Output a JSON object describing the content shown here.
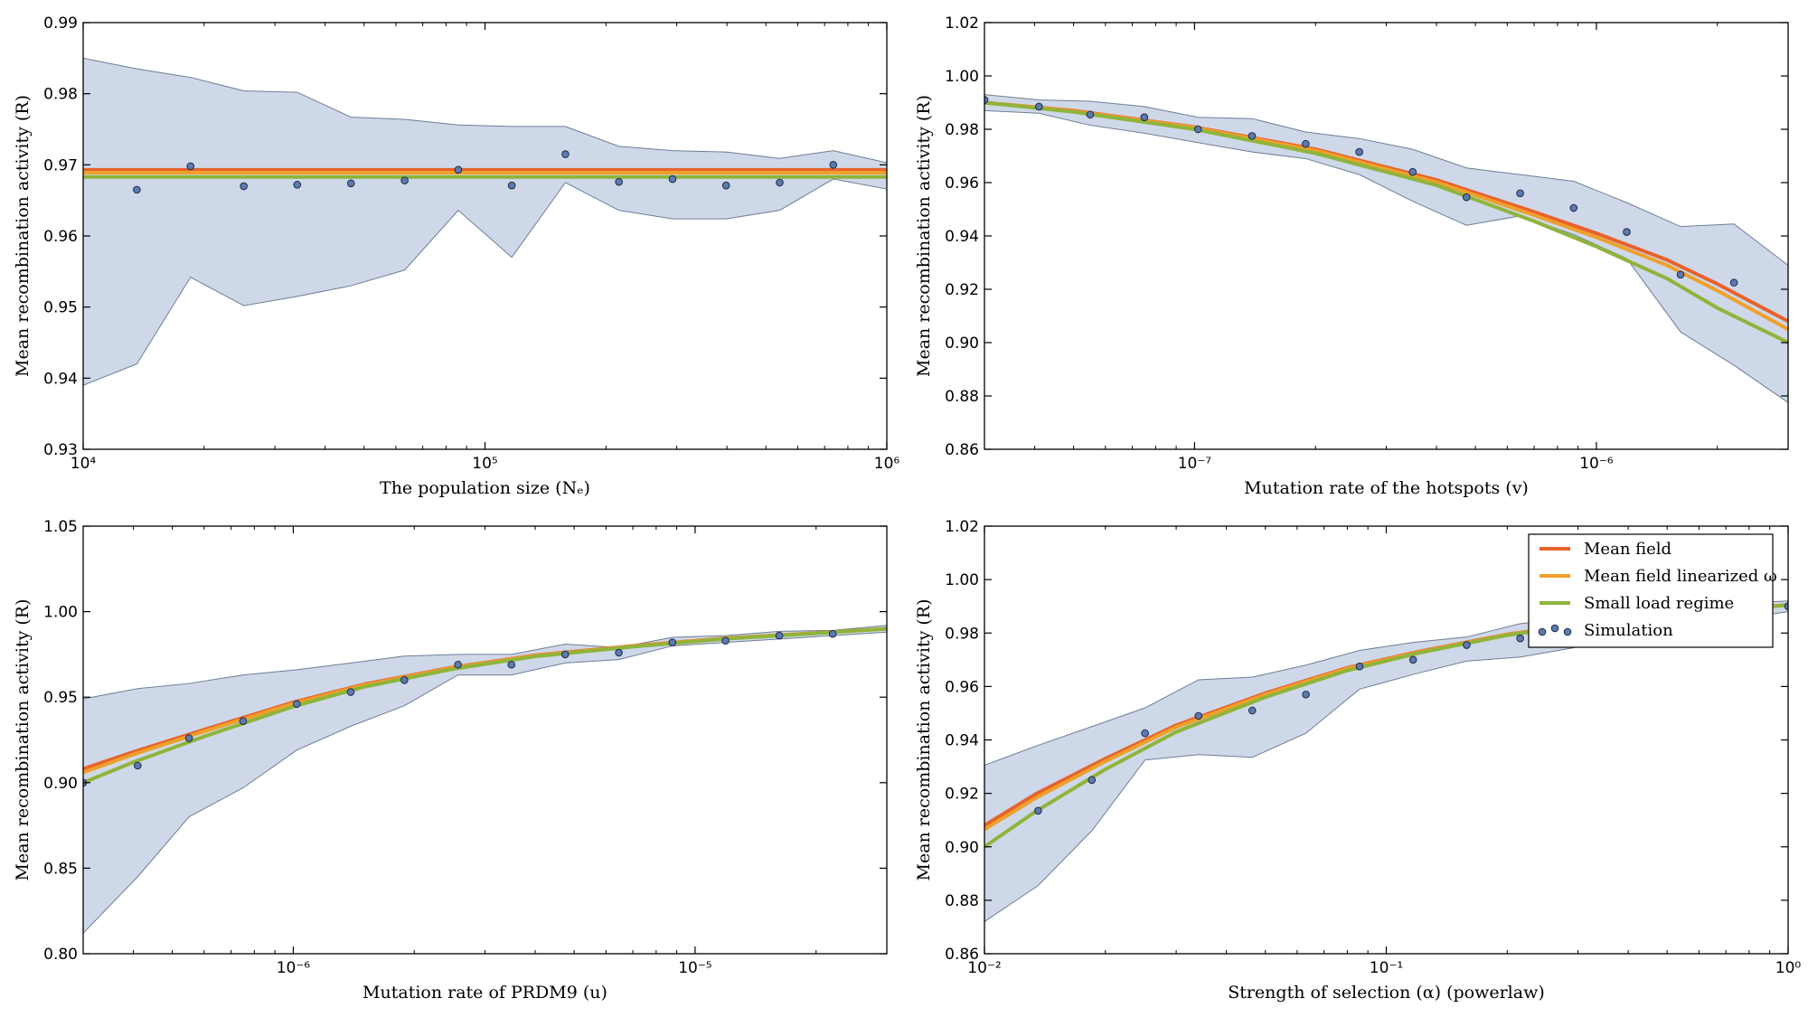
{
  "colors": {
    "band_fill": "#b0c0da",
    "band_edge": "#6f7e95",
    "mean_field": "#e8622c",
    "mean_field_linearized": "#eea02a",
    "small_load": "#8fb43b",
    "simulation_marker": "#5b7bb0"
  },
  "legend": {
    "placement": "upper-right of bottom-right panel",
    "items": [
      {
        "label": "Mean field",
        "series": "mean_field"
      },
      {
        "label": "Mean field linearized ω",
        "series": "mean_field_linearized"
      },
      {
        "label": "Small load regime",
        "series": "small_load"
      },
      {
        "label": "Simulation",
        "series": "simulation"
      }
    ]
  },
  "chart_data": [
    {
      "type": "line",
      "xscale": "log",
      "xlabel": "The population size (Nₑ)",
      "ylabel": "Mean recombination activity (R)",
      "xlim": [
        10000,
        1000000
      ],
      "ylim": [
        0.93,
        0.99
      ],
      "xticks": [
        {
          "value": 10000,
          "label": "10⁴"
        },
        {
          "value": 100000,
          "label": "10⁵"
        },
        {
          "value": 1000000,
          "label": "10⁶"
        }
      ],
      "yticks": [
        {
          "value": 0.93,
          "label": "0.93"
        },
        {
          "value": 0.94,
          "label": "0.94"
        },
        {
          "value": 0.95,
          "label": "0.95"
        },
        {
          "value": 0.96,
          "label": "0.96"
        },
        {
          "value": 0.97,
          "label": "0.97"
        },
        {
          "value": 0.98,
          "label": "0.98"
        },
        {
          "value": 0.99,
          "label": "0.99"
        }
      ],
      "series": [
        {
          "name": "Mean field",
          "key": "mean_field",
          "x": [
            10000,
            1000000
          ],
          "y": [
            0.9693,
            0.9693
          ]
        },
        {
          "name": "Mean field linearized ω",
          "key": "mean_field_linearized",
          "x": [
            10000,
            1000000
          ],
          "y": [
            0.9689,
            0.9689
          ]
        },
        {
          "name": "Small load regime",
          "key": "small_load",
          "x": [
            10000,
            1000000
          ],
          "y": [
            0.9683,
            0.9683
          ]
        }
      ],
      "simulation": {
        "x": [
          13600,
          18500,
          25100,
          34100,
          46400,
          63100,
          85800,
          116600,
          158500,
          215400,
          292900,
          398100,
          541200,
          735700
        ],
        "y": [
          0.9665,
          0.9698,
          0.967,
          0.9672,
          0.9674,
          0.9678,
          0.9693,
          0.9671,
          0.9715,
          0.9676,
          0.968,
          0.9671,
          0.9675,
          0.97
        ]
      },
      "band": {
        "x": [
          10000,
          13600,
          18500,
          25100,
          34100,
          46400,
          63100,
          85800,
          116600,
          158500,
          215400,
          292900,
          398100,
          541200,
          735700,
          1000000
        ],
        "upper": [
          0.985,
          0.9835,
          0.9823,
          0.9804,
          0.9802,
          0.9767,
          0.9764,
          0.9756,
          0.9754,
          0.9754,
          0.9726,
          0.972,
          0.9718,
          0.9709,
          0.972,
          0.9703
        ],
        "lower": [
          0.939,
          0.942,
          0.9542,
          0.9502,
          0.9515,
          0.953,
          0.9552,
          0.9636,
          0.957,
          0.9675,
          0.9636,
          0.9624,
          0.9624,
          0.9636,
          0.968,
          0.9666
        ]
      }
    },
    {
      "type": "line",
      "xscale": "log",
      "xlabel": "Mutation rate of the hotspots (v)",
      "ylabel": "Mean recombination activity (R)",
      "xlim": [
        3e-08,
        3e-06
      ],
      "ylim": [
        0.86,
        1.02
      ],
      "xticks": [
        {
          "value": 1e-07,
          "label": "10⁻⁷"
        },
        {
          "value": 1e-06,
          "label": "10⁻⁶"
        }
      ],
      "yticks": [
        {
          "value": 0.86,
          "label": "0.86"
        },
        {
          "value": 0.88,
          "label": "0.88"
        },
        {
          "value": 0.9,
          "label": "0.90"
        },
        {
          "value": 0.92,
          "label": "0.92"
        },
        {
          "value": 0.94,
          "label": "0.94"
        },
        {
          "value": 0.96,
          "label": "0.96"
        },
        {
          "value": 0.98,
          "label": "0.98"
        },
        {
          "value": 1.0,
          "label": "1.00"
        },
        {
          "value": 1.02,
          "label": "1.02"
        }
      ],
      "series": [
        {
          "name": "Mean field",
          "key": "mean_field",
          "x": [
            3e-08,
            5e-08,
            1e-07,
            2e-07,
            4e-07,
            7e-07,
            1e-06,
            1.5e-06,
            2e-06,
            3e-06
          ],
          "y": [
            0.99,
            0.987,
            0.9808,
            0.9725,
            0.961,
            0.949,
            0.941,
            0.931,
            0.922,
            0.908
          ]
        },
        {
          "name": "Mean field linearized ω",
          "key": "mean_field_linearized",
          "x": [
            3e-08,
            5e-08,
            1e-07,
            2e-07,
            4e-07,
            7e-07,
            1e-06,
            1.5e-06,
            2e-06,
            3e-06
          ],
          "y": [
            0.99,
            0.9868,
            0.9806,
            0.972,
            0.9602,
            0.9478,
            0.9395,
            0.929,
            0.9195,
            0.905
          ]
        },
        {
          "name": "Small load regime",
          "key": "small_load",
          "x": [
            3e-08,
            5e-08,
            1e-07,
            2e-07,
            4e-07,
            7e-07,
            1e-06,
            1.5e-06,
            2e-06,
            3e-06
          ],
          "y": [
            0.99,
            0.9865,
            0.98,
            0.971,
            0.959,
            0.9455,
            0.936,
            0.924,
            0.913,
            0.9
          ]
        }
      ],
      "simulation": {
        "x": [
          3e-08,
          4.1e-08,
          5.5e-08,
          7.5e-08,
          1.02e-07,
          1.39e-07,
          1.89e-07,
          2.57e-07,
          3.49e-07,
          4.75e-07,
          6.46e-07,
          8.78e-07,
          1.19e-06,
          1.62e-06,
          2.2e-06
        ],
        "y": [
          0.991,
          0.9885,
          0.9855,
          0.9845,
          0.98,
          0.9775,
          0.9745,
          0.9715,
          0.964,
          0.9545,
          0.956,
          0.9505,
          0.9415,
          0.9255,
          0.9225
        ]
      },
      "band": {
        "x": [
          3e-08,
          4.1e-08,
          5.5e-08,
          7.5e-08,
          1.02e-07,
          1.39e-07,
          1.89e-07,
          2.57e-07,
          3.49e-07,
          4.75e-07,
          6.46e-07,
          8.78e-07,
          1.19e-06,
          1.62e-06,
          2.2e-06,
          3e-06
        ],
        "upper": [
          0.993,
          0.991,
          0.9905,
          0.9885,
          0.9845,
          0.984,
          0.979,
          0.9765,
          0.9725,
          0.9655,
          0.963,
          0.9605,
          0.9525,
          0.9435,
          0.9445,
          0.929
        ],
        "lower": [
          0.987,
          0.986,
          0.9815,
          0.9785,
          0.975,
          0.9715,
          0.969,
          0.963,
          0.953,
          0.944,
          0.9475,
          0.9405,
          0.9315,
          0.904,
          0.8915,
          0.8775
        ]
      }
    },
    {
      "type": "line",
      "xscale": "log",
      "xlabel": "Mutation rate of PRDM9 (u)",
      "ylabel": "Mean recombination activity (R)",
      "xlim": [
        3e-07,
        3e-05
      ],
      "ylim": [
        0.8,
        1.05
      ],
      "xticks": [
        {
          "value": 1e-06,
          "label": "10⁻⁶"
        },
        {
          "value": 1e-05,
          "label": "10⁻⁵"
        }
      ],
      "yticks": [
        {
          "value": 0.8,
          "label": "0.80"
        },
        {
          "value": 0.85,
          "label": "0.85"
        },
        {
          "value": 0.9,
          "label": "0.90"
        },
        {
          "value": 0.95,
          "label": "0.95"
        },
        {
          "value": 1.0,
          "label": "1.00"
        },
        {
          "value": 1.05,
          "label": "1.05"
        }
      ],
      "series": [
        {
          "name": "Mean field",
          "key": "mean_field",
          "x": [
            3e-07,
            4e-07,
            6e-07,
            1e-06,
            1.5e-06,
            2.5e-06,
            4e-06,
            7e-06,
            1.2e-05,
            2e-05,
            3e-05
          ],
          "y": [
            0.908,
            0.918,
            0.931,
            0.947,
            0.9575,
            0.9675,
            0.9745,
            0.98,
            0.9845,
            0.9875,
            0.99
          ]
        },
        {
          "name": "Mean field linearized ω",
          "key": "mean_field_linearized",
          "x": [
            3e-07,
            4e-07,
            6e-07,
            1e-06,
            1.5e-06,
            2.5e-06,
            4e-06,
            7e-06,
            1.2e-05,
            2e-05,
            3e-05
          ],
          "y": [
            0.906,
            0.9165,
            0.93,
            0.9462,
            0.957,
            0.9672,
            0.9742,
            0.9798,
            0.9844,
            0.9874,
            0.99
          ]
        },
        {
          "name": "Small load regime",
          "key": "small_load",
          "x": [
            3e-07,
            4e-07,
            6e-07,
            1e-06,
            1.5e-06,
            2.5e-06,
            4e-06,
            7e-06,
            1.2e-05,
            2e-05,
            3e-05
          ],
          "y": [
            0.9,
            0.912,
            0.927,
            0.9445,
            0.956,
            0.9665,
            0.9738,
            0.9795,
            0.9842,
            0.9873,
            0.99
          ]
        }
      ],
      "simulation": {
        "x": [
          3e-07,
          4.1e-07,
          5.5e-07,
          7.5e-07,
          1.02e-06,
          1.39e-06,
          1.89e-06,
          2.57e-06,
          3.49e-06,
          4.75e-06,
          6.46e-06,
          8.78e-06,
          1.19e-05,
          1.62e-05,
          2.2e-05
        ],
        "y": [
          0.9,
          0.91,
          0.926,
          0.936,
          0.946,
          0.953,
          0.96,
          0.969,
          0.969,
          0.975,
          0.976,
          0.982,
          0.983,
          0.986,
          0.987
        ]
      },
      "band": {
        "x": [
          3e-07,
          4.1e-07,
          5.5e-07,
          7.5e-07,
          1.02e-06,
          1.39e-06,
          1.89e-06,
          2.57e-06,
          3.49e-06,
          4.75e-06,
          6.46e-06,
          8.78e-06,
          1.19e-05,
          1.62e-05,
          2.2e-05,
          3e-05
        ],
        "upper": [
          0.949,
          0.955,
          0.958,
          0.963,
          0.966,
          0.97,
          0.974,
          0.975,
          0.975,
          0.981,
          0.979,
          0.985,
          0.986,
          0.9885,
          0.989,
          0.992
        ],
        "lower": [
          0.812,
          0.845,
          0.88,
          0.897,
          0.919,
          0.933,
          0.945,
          0.963,
          0.963,
          0.97,
          0.972,
          0.98,
          0.982,
          0.984,
          0.986,
          0.988
        ]
      }
    },
    {
      "type": "line",
      "xscale": "log",
      "xlabel": "Strength of selection (α) (powerlaw)",
      "ylabel": "Mean recombination activity (R)",
      "xlim": [
        0.01,
        1
      ],
      "ylim": [
        0.86,
        1.02
      ],
      "xticks": [
        {
          "value": 0.01,
          "label": "10⁻²"
        },
        {
          "value": 0.1,
          "label": "10⁻¹"
        },
        {
          "value": 1,
          "label": "10⁰"
        }
      ],
      "yticks": [
        {
          "value": 0.86,
          "label": "0.86"
        },
        {
          "value": 0.88,
          "label": "0.88"
        },
        {
          "value": 0.9,
          "label": "0.90"
        },
        {
          "value": 0.92,
          "label": "0.92"
        },
        {
          "value": 0.94,
          "label": "0.94"
        },
        {
          "value": 0.96,
          "label": "0.96"
        },
        {
          "value": 0.98,
          "label": "0.98"
        },
        {
          "value": 1.0,
          "label": "1.00"
        },
        {
          "value": 1.02,
          "label": "1.02"
        }
      ],
      "series": [
        {
          "name": "Mean field",
          "key": "mean_field",
          "x": [
            0.01,
            0.0135,
            0.02,
            0.03,
            0.05,
            0.08,
            0.12,
            0.2,
            0.35,
            0.6,
            1.0
          ],
          "y": [
            0.908,
            0.92,
            0.933,
            0.9455,
            0.9575,
            0.967,
            0.973,
            0.9795,
            0.9845,
            0.988,
            0.9905
          ]
        },
        {
          "name": "Mean field linearized ω",
          "key": "mean_field_linearized",
          "x": [
            0.01,
            0.0135,
            0.02,
            0.03,
            0.05,
            0.08,
            0.12,
            0.2,
            0.35,
            0.6,
            1.0
          ],
          "y": [
            0.9065,
            0.9185,
            0.932,
            0.9448,
            0.957,
            0.9667,
            0.9728,
            0.9794,
            0.9845,
            0.988,
            0.9905
          ]
        },
        {
          "name": "Small load regime",
          "key": "small_load",
          "x": [
            0.01,
            0.0135,
            0.02,
            0.03,
            0.05,
            0.08,
            0.12,
            0.2,
            0.35,
            0.6,
            1.0
          ],
          "y": [
            0.9,
            0.9135,
            0.929,
            0.943,
            0.956,
            0.966,
            0.9725,
            0.9792,
            0.9843,
            0.9878,
            0.9905
          ]
        }
      ],
      "simulation": {
        "x": [
          0.0136,
          0.0185,
          0.0251,
          0.0341,
          0.0464,
          0.0631,
          0.0858,
          0.1166,
          0.1585,
          0.2154,
          0.2929,
          0.3981,
          0.5412,
          0.7357,
          1.0
        ],
        "y": [
          0.9135,
          0.925,
          0.9425,
          0.949,
          0.951,
          0.957,
          0.9675,
          0.97,
          0.9755,
          0.978,
          0.982,
          0.985,
          0.987,
          0.989,
          0.99
        ]
      },
      "band": {
        "x": [
          0.01,
          0.0136,
          0.0185,
          0.0251,
          0.0341,
          0.0464,
          0.0631,
          0.0858,
          0.1166,
          0.1585,
          0.2154,
          0.2929,
          0.3981,
          0.5412,
          0.7357,
          1.0
        ],
        "upper": [
          0.9305,
          0.938,
          0.945,
          0.952,
          0.9625,
          0.9635,
          0.968,
          0.9735,
          0.9765,
          0.9785,
          0.9835,
          0.9855,
          0.988,
          0.9895,
          0.991,
          0.992
        ],
        "lower": [
          0.872,
          0.8855,
          0.906,
          0.9325,
          0.9345,
          0.9335,
          0.9425,
          0.959,
          0.9645,
          0.9695,
          0.971,
          0.9745,
          0.979,
          0.982,
          0.985,
          0.988
        ]
      }
    }
  ]
}
